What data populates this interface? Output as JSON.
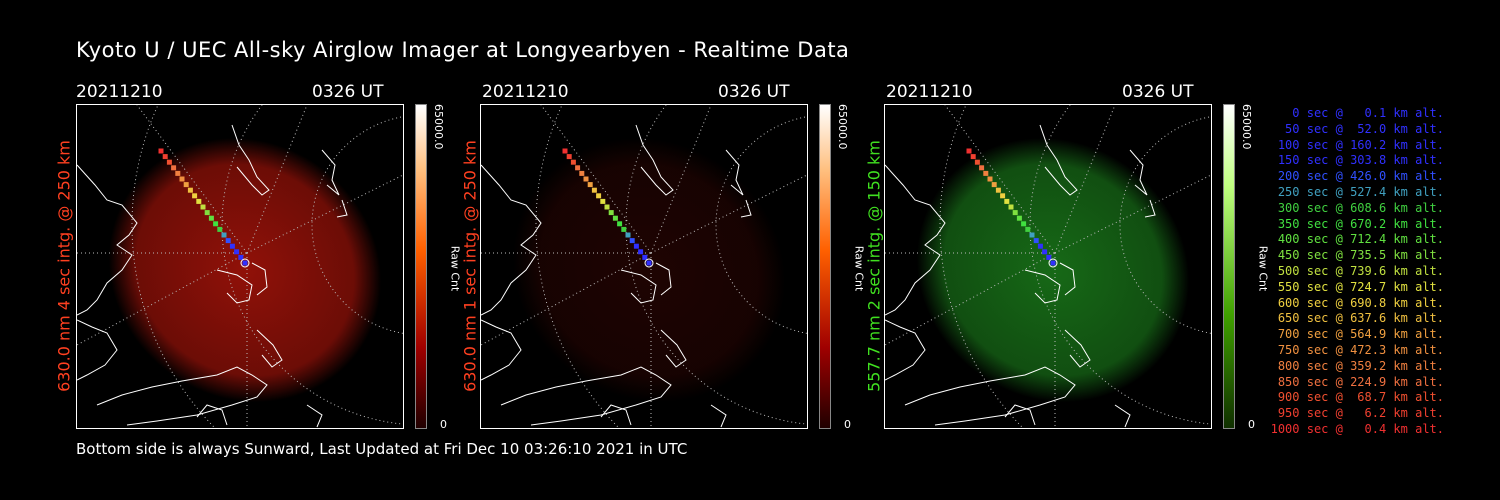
{
  "title": "Kyoto U / UEC All-sky Airglow Imager at Longyearbyen - Realtime Data",
  "footer": "Bottom side is always Sunward, Last Updated at Fri Dec 10 03:26:10 2021 in UTC",
  "panels": [
    {
      "date": "20211210",
      "time": "0326 UT",
      "side_label": "630.0 nm 4 sec intg. @ 250 km",
      "side_label_color": "#ff4020",
      "colorbar_max": "65000.0",
      "colorbar_unit": "Raw Cnt",
      "colorbar_zero": "0",
      "tint": "red",
      "brightness": 0.85
    },
    {
      "date": "20211210",
      "time": "0326 UT",
      "side_label": "630.0 nm 1 sec intg. @ 250 km",
      "side_label_color": "#ff4020",
      "colorbar_max": "65000.0",
      "colorbar_unit": "Raw Cnt",
      "colorbar_zero": "0",
      "tint": "red",
      "brightness": 0.18
    },
    {
      "date": "20211210",
      "time": "0326 UT",
      "side_label": "557.7 nm 2 sec intg. @ 150 km",
      "side_label_color": "#40e020",
      "colorbar_max": "65000.0",
      "colorbar_unit": "Raw Cnt",
      "colorbar_zero": "0",
      "tint": "green",
      "brightness": 0.75
    }
  ],
  "legend": [
    {
      "text": "   0 sec @   0.1 km alt.",
      "color": "#3030ff"
    },
    {
      "text": "  50 sec @  52.0 km alt.",
      "color": "#3030ff"
    },
    {
      "text": " 100 sec @ 160.2 km alt.",
      "color": "#3030ff"
    },
    {
      "text": " 150 sec @ 303.8 km alt.",
      "color": "#3030ff"
    },
    {
      "text": " 200 sec @ 426.0 km alt.",
      "color": "#3050ff"
    },
    {
      "text": " 250 sec @ 527.4 km alt.",
      "color": "#40a0c0"
    },
    {
      "text": " 300 sec @ 608.6 km alt.",
      "color": "#40d040"
    },
    {
      "text": " 350 sec @ 670.2 km alt.",
      "color": "#40e040"
    },
    {
      "text": " 400 sec @ 712.4 km alt.",
      "color": "#60e040"
    },
    {
      "text": " 450 sec @ 735.5 km alt.",
      "color": "#80e040"
    },
    {
      "text": " 500 sec @ 739.6 km alt.",
      "color": "#c0e040"
    },
    {
      "text": " 550 sec @ 724.7 km alt.",
      "color": "#e0e040"
    },
    {
      "text": " 600 sec @ 690.8 km alt.",
      "color": "#f0d040"
    },
    {
      "text": " 650 sec @ 637.6 km alt.",
      "color": "#f0c040"
    },
    {
      "text": " 700 sec @ 564.9 km alt.",
      "color": "#f0a040"
    },
    {
      "text": " 750 sec @ 472.3 km alt.",
      "color": "#f09040"
    },
    {
      "text": " 800 sec @ 359.2 km alt.",
      "color": "#f08040"
    },
    {
      "text": " 850 sec @ 224.9 km alt.",
      "color": "#f07040"
    },
    {
      "text": " 900 sec @  68.7 km alt.",
      "color": "#f05030"
    },
    {
      "text": " 950 sec @   6.2 km alt.",
      "color": "#f04030"
    },
    {
      "text": "1000 sec @   0.4 km alt.",
      "color": "#f03030"
    }
  ]
}
